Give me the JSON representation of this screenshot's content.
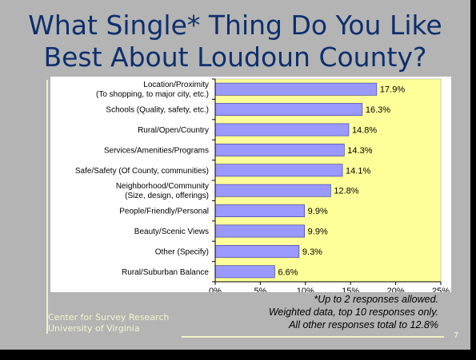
{
  "slide": {
    "title_line1": "What Single* Thing Do You Like",
    "title_line2": "Best About Loudoun County?",
    "footer_line1": "Center for Survey Research",
    "footer_line2": "University of Virginia",
    "note_line1": "*Up to 2 responses allowed.",
    "note_line2": "Weighted data, top 10 responses only.",
    "note_line3": "All other responses total to 12.8%",
    "page_number": "7"
  },
  "colors": {
    "background": "#b4b4b4",
    "title": "#0d2f6e",
    "plot_area": "#ffff99",
    "bar_fill": "#9999ff",
    "bar_stroke": "#333399",
    "footer_text": "#f4f4cc"
  },
  "chart_data": {
    "type": "bar",
    "orientation": "horizontal",
    "categories": [
      [
        "Location/Proximity",
        "(To shopping, to major city, etc.)"
      ],
      [
        "Schools (Quality, safety, etc.)"
      ],
      [
        "Rural/Open/Country"
      ],
      [
        "Services/Amenities/Programs"
      ],
      [
        "Safe/Safety (Of County, communities)"
      ],
      [
        "Neighborhood/Community",
        "(Size, design, offerings)"
      ],
      [
        "People/Friendly/Personal"
      ],
      [
        "Beauty/Scenic Views"
      ],
      [
        "Other (Specify)"
      ],
      [
        "Rural/Suburban Balance"
      ]
    ],
    "values": [
      17.9,
      16.3,
      14.8,
      14.3,
      14.1,
      12.8,
      9.9,
      9.9,
      9.3,
      6.6
    ],
    "value_labels": [
      "17.9%",
      "16.3%",
      "14.8%",
      "14.3%",
      "14.1%",
      "12.8%",
      "9.9%",
      "9.9%",
      "9.3%",
      "6.6%"
    ],
    "xlim": [
      0,
      25
    ],
    "ticks": [
      0,
      5,
      10,
      15,
      20,
      25
    ],
    "tick_labels": [
      "0%",
      "5%",
      "10%",
      "15%",
      "20%",
      "25%"
    ],
    "grid": false,
    "legend": "none"
  }
}
